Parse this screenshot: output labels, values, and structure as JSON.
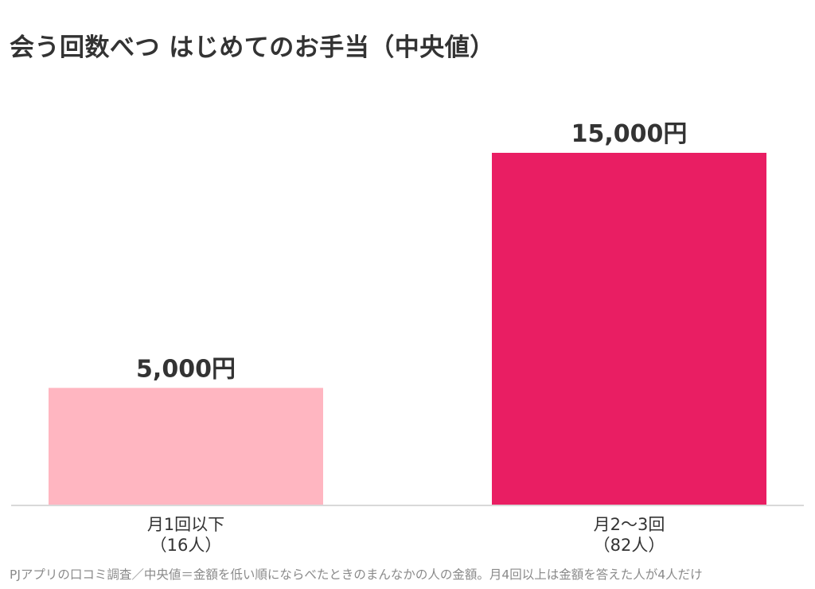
{
  "chart_data": {
    "type": "bar",
    "title": "会う回数べつ はじめてのお手当（中央値）",
    "categories": [
      "月1回以下",
      "月2〜3回"
    ],
    "category_counts": [
      "（16人）",
      "（82人）"
    ],
    "values": [
      5000,
      15000
    ],
    "value_labels": [
      "5,000円",
      "15,000円"
    ],
    "colors": [
      "#FFB6C1",
      "#E91E63"
    ],
    "ylim": [
      0,
      15000
    ],
    "xlabel": "",
    "ylabel": "",
    "grid": false,
    "legend": "none"
  },
  "footnote": "PJアプリの口コミ調査／中央値＝金額を低い順にならべたときのまんなかの人の金額。月4回以上は金額を答えた人が4人だけ"
}
